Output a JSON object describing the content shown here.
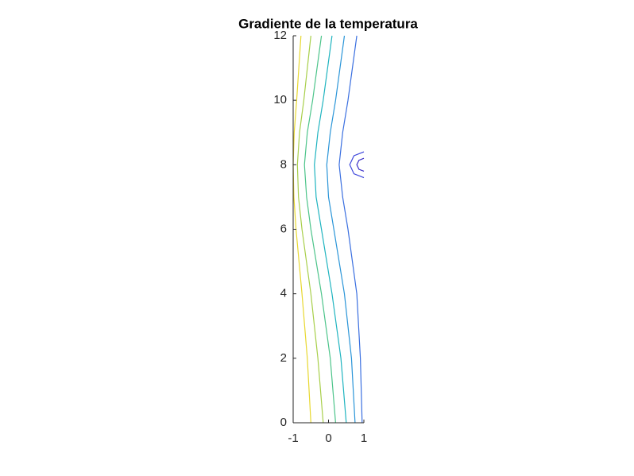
{
  "chart_data": {
    "type": "contour",
    "title": "Gradiente de la temperatura",
    "xlim": [
      -1,
      1
    ],
    "ylim": [
      0,
      12
    ],
    "xticks": [
      -1,
      0,
      1
    ],
    "yticks": [
      0,
      2,
      4,
      6,
      8,
      10,
      12
    ],
    "contours": [
      {
        "color": "#3b2fc8",
        "x": [
          1,
          0.86,
          0.8,
          0.86,
          1
        ],
        "y": [
          7.8,
          7.86,
          8,
          8.14,
          8.2
        ]
      },
      {
        "color": "#3f48dc",
        "x": [
          1,
          0.72,
          0.6,
          0.72,
          1
        ],
        "y": [
          7.6,
          7.72,
          8,
          8.28,
          8.4
        ]
      },
      {
        "color": "#3a6fe0",
        "x": [
          0.95,
          0.9,
          0.8,
          0.55,
          0.4,
          0.3,
          0.4,
          0.55,
          0.8
        ],
        "y": [
          0,
          2,
          4,
          6,
          7,
          8,
          9,
          10,
          12
        ]
      },
      {
        "color": "#2a95d8",
        "x": [
          0.75,
          0.65,
          0.45,
          0.15,
          0.0,
          -0.05,
          0.05,
          0.2,
          0.45
        ],
        "y": [
          0,
          2,
          4,
          6,
          7,
          8,
          9,
          10,
          12
        ]
      },
      {
        "color": "#1fb4c0",
        "x": [
          0.5,
          0.35,
          0.1,
          -0.2,
          -0.35,
          -0.4,
          -0.3,
          -0.15,
          0.1
        ],
        "y": [
          0,
          2,
          4,
          6,
          7,
          8,
          9,
          10,
          12
        ]
      },
      {
        "color": "#4cc48a",
        "x": [
          0.2,
          0.05,
          -0.2,
          -0.5,
          -0.62,
          -0.68,
          -0.6,
          -0.45,
          -0.2
        ],
        "y": [
          0,
          2,
          4,
          6,
          7,
          8,
          9,
          10,
          12
        ]
      },
      {
        "color": "#a8cf4a",
        "x": [
          -0.15,
          -0.3,
          -0.5,
          -0.75,
          -0.85,
          -0.88,
          -0.82,
          -0.7,
          -0.5
        ],
        "y": [
          0,
          2,
          4,
          6,
          7,
          8,
          9,
          10,
          12
        ]
      },
      {
        "color": "#e8d830",
        "x": [
          -0.5,
          -0.6,
          -0.75,
          -0.92,
          -0.98,
          -1.0,
          -0.97,
          -0.9,
          -0.78
        ],
        "y": [
          0,
          2,
          4,
          6,
          7,
          8,
          9,
          10,
          12
        ]
      }
    ]
  }
}
